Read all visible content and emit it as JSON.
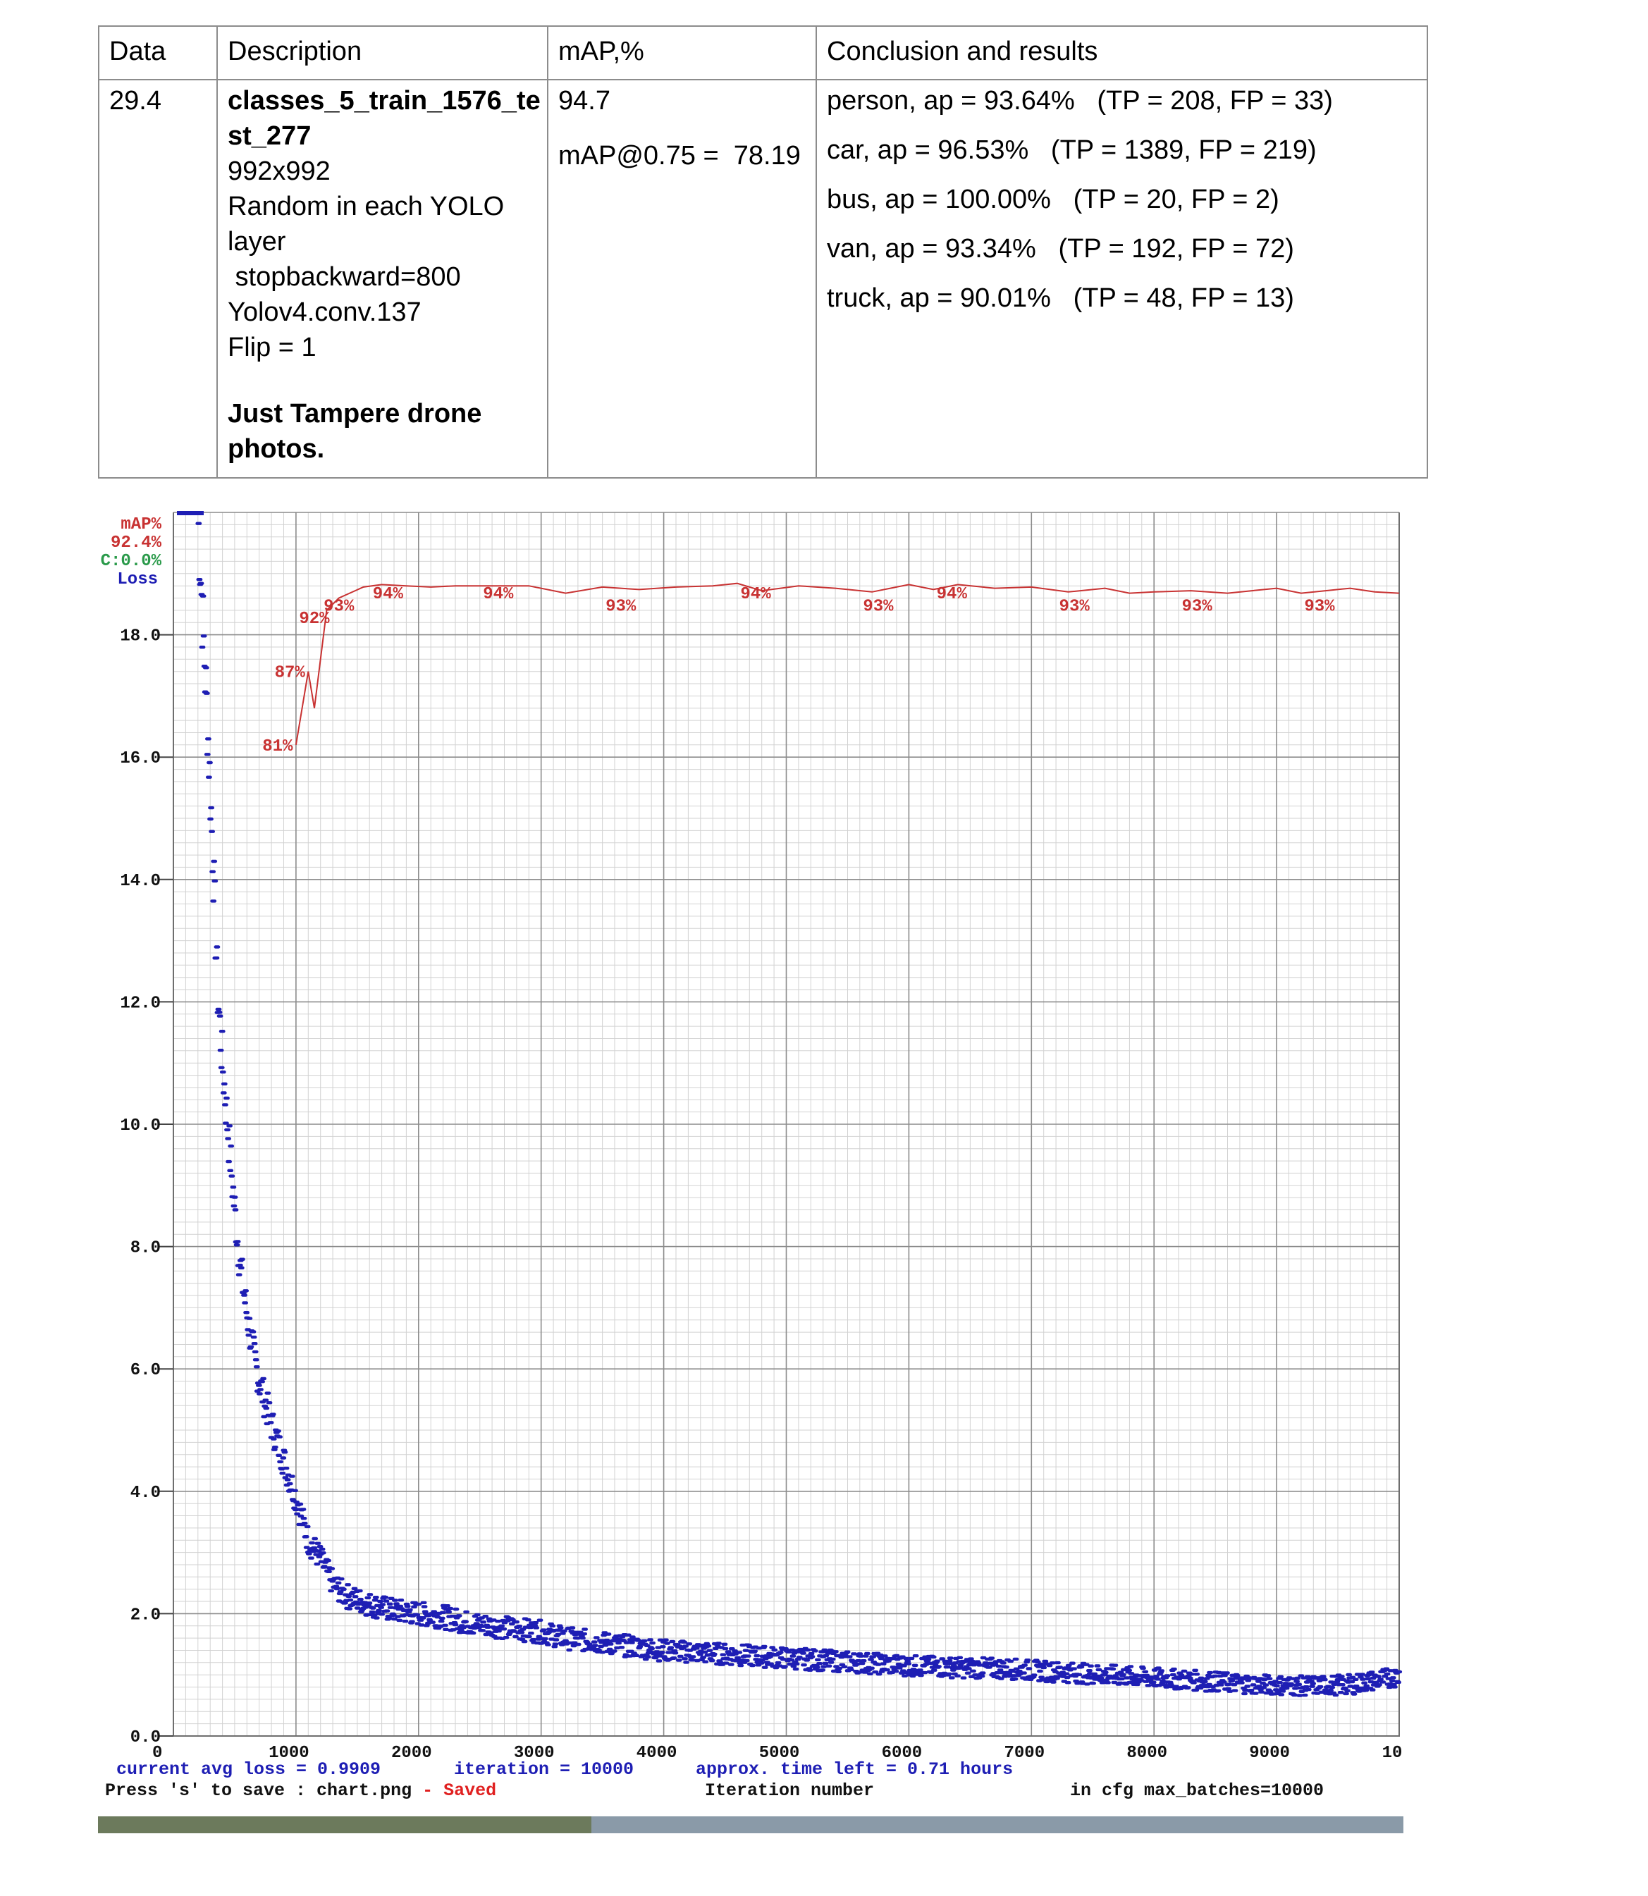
{
  "table": {
    "headers": [
      "Data",
      "Description",
      "mAP,%",
      "Conclusion and results"
    ],
    "row": {
      "data": "29.4",
      "description": {
        "name_line1": "classes_5_train_1576_te",
        "name_line2": "st_277",
        "lines": [
          "992x992",
          "Random in each YOLO",
          "layer",
          " stopbackward=800",
          "Yolov4.conv.137",
          "Flip = 1"
        ],
        "note_line1": "Just Tampere drone",
        "note_line2": "photos."
      },
      "map": "94.7",
      "map75": "mAP@0.75 =  78.19",
      "classes": [
        "person, ap = 93.64%   (TP = 208, FP = 33)",
        "car, ap = 96.53%   (TP = 1389, FP = 219)",
        "bus, ap = 100.00%   (TP = 20, FP = 2)",
        "van, ap = 93.34%   (TP = 192, FP = 72)",
        "truck, ap = 90.01%   (TP = 48, FP = 13)"
      ]
    }
  },
  "chart_data": {
    "type": "line",
    "legend": {
      "map_label": "mAP%",
      "map_value": "92.4%",
      "c_label": "C:0.0%",
      "loss_label": "Loss"
    },
    "y_ticks": [
      "0.0",
      "2.0",
      "4.0",
      "6.0",
      "8.0",
      "10.0",
      "12.0",
      "14.0",
      "16.0",
      "18.0"
    ],
    "x_ticks": [
      "0",
      "1000",
      "2000",
      "3000",
      "4000",
      "5000",
      "6000",
      "7000",
      "8000",
      "9000",
      "10"
    ],
    "ylim": [
      0,
      20
    ],
    "xlim": [
      0,
      10000
    ],
    "grid": true,
    "map_series": {
      "name": "mAP%",
      "x": [
        1000,
        1100,
        1150,
        1250,
        1350,
        1550,
        1700,
        1900,
        2100,
        2300,
        2600,
        2900,
        3200,
        3500,
        3800,
        4100,
        4400,
        4600,
        4800,
        5100,
        5400,
        5700,
        6000,
        6200,
        6400,
        6700,
        7000,
        7300,
        7600,
        7800,
        8000,
        8300,
        8600,
        8800,
        9000,
        9200,
        9400,
        9600,
        9800,
        10000
      ],
      "values": [
        81,
        87,
        84,
        92,
        93,
        93.9,
        94.1,
        94,
        93.9,
        94,
        94,
        94,
        93.4,
        93.9,
        93.7,
        93.9,
        94,
        94.2,
        93.6,
        94,
        93.8,
        93.5,
        94.1,
        93.7,
        94.1,
        93.8,
        93.9,
        93.5,
        93.8,
        93.4,
        93.5,
        93.6,
        93.4,
        93.6,
        93.8,
        93.4,
        93.6,
        93.8,
        93.5,
        93.4
      ],
      "labels": [
        {
          "x": 850,
          "text": "81%",
          "value": 81
        },
        {
          "x": 950,
          "text": "87%",
          "value": 87
        },
        {
          "x": 1150,
          "text": "92%",
          "value": 92
        },
        {
          "x": 1350,
          "text": "93%",
          "value": 93
        },
        {
          "x": 1750,
          "text": "94%",
          "value": 94
        },
        {
          "x": 2650,
          "text": "94%",
          "value": 94
        },
        {
          "x": 3650,
          "text": "93%",
          "value": 93
        },
        {
          "x": 4750,
          "text": "94%",
          "value": 94
        },
        {
          "x": 5750,
          "text": "93%",
          "value": 93
        },
        {
          "x": 6350,
          "text": "94%",
          "value": 94
        },
        {
          "x": 7350,
          "text": "93%",
          "value": 93
        },
        {
          "x": 8350,
          "text": "93%",
          "value": 93
        },
        {
          "x": 9350,
          "text": "93%",
          "value": 93
        }
      ]
    },
    "loss_series": {
      "name": "Loss",
      "x": [
        200,
        240,
        280,
        320,
        360,
        400,
        450,
        500,
        550,
        600,
        650,
        700,
        800,
        900,
        1000,
        1100,
        1200,
        1300,
        1400,
        1600,
        1800,
        2000,
        2200,
        2400,
        2600,
        2800,
        3000,
        3200,
        3400,
        3600,
        3800,
        4000,
        4400,
        4800,
        5200,
        5600,
        6000,
        6400,
        6800,
        7200,
        7600,
        8000,
        8400,
        8800,
        9200,
        9600,
        10000
      ],
      "values": [
        20,
        18.2,
        16.5,
        14.5,
        12.2,
        11.0,
        9.8,
        8.6,
        7.6,
        6.9,
        6.3,
        5.8,
        5.1,
        4.5,
        3.9,
        3.2,
        2.9,
        2.5,
        2.3,
        2.15,
        2.05,
        2.0,
        1.95,
        1.85,
        1.8,
        1.75,
        1.7,
        1.6,
        1.55,
        1.5,
        1.45,
        1.4,
        1.35,
        1.3,
        1.25,
        1.2,
        1.15,
        1.12,
        1.1,
        1.05,
        1.0,
        0.95,
        0.9,
        0.85,
        0.82,
        0.84,
        0.98
      ]
    },
    "footer": {
      "avg_loss": "current avg loss = 0.9909",
      "iteration": "iteration = 10000",
      "time_left": "approx. time left = 0.71 hours",
      "save_hint": "Press 's' to save : chart.png",
      "dash": " - ",
      "saved": "Saved",
      "xlabel": "Iteration number",
      "max_batches": "in cfg max_batches=10000"
    },
    "colors": {
      "map": "#c83232",
      "map_value": "#c83232",
      "c": "#2a9a4a",
      "loss": "#1e1eb4",
      "grid_major": "#8c8c8c",
      "grid_minor": "#d2d2d2",
      "footer_text": "#1e1eb4",
      "saved": "#e02020"
    }
  }
}
